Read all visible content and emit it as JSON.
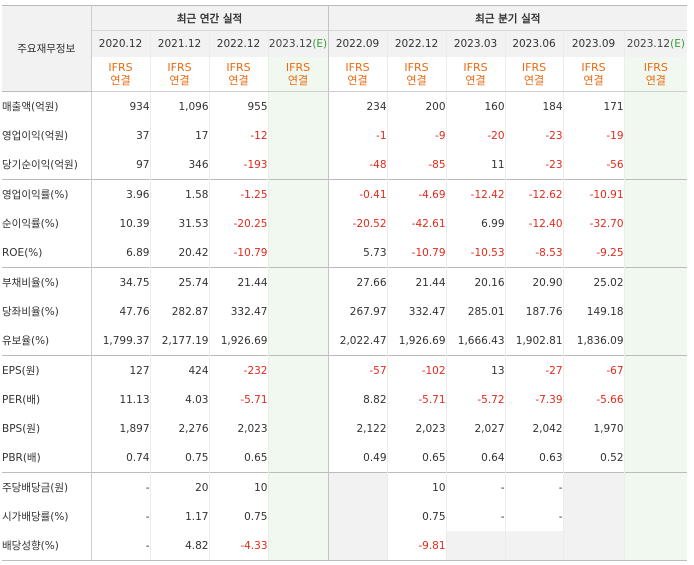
{
  "header": {
    "row_header": "주요재무정보",
    "annual_group": "최근 연간 실적",
    "quarter_group": "최근 분기 실적"
  },
  "periods": [
    {
      "label": "2020.12",
      "estimate": false,
      "basis": "IFRS",
      "scope": "연결"
    },
    {
      "label": "2021.12",
      "estimate": false,
      "basis": "IFRS",
      "scope": "연결"
    },
    {
      "label": "2022.12",
      "estimate": false,
      "basis": "IFRS",
      "scope": "연결"
    },
    {
      "label": "2023.12",
      "estimate": true,
      "estimate_mark": "(E)",
      "basis": "IFRS",
      "scope": "연결"
    },
    {
      "label": "2022.09",
      "estimate": false,
      "basis": "IFRS",
      "scope": "연결"
    },
    {
      "label": "2022.12",
      "estimate": false,
      "basis": "IFRS",
      "scope": "연결"
    },
    {
      "label": "2023.03",
      "estimate": false,
      "basis": "IFRS",
      "scope": "연결"
    },
    {
      "label": "2023.06",
      "estimate": false,
      "basis": "IFRS",
      "scope": "연결"
    },
    {
      "label": "2023.09",
      "estimate": false,
      "basis": "IFRS",
      "scope": "연결"
    },
    {
      "label": "2023.12",
      "estimate": true,
      "estimate_mark": "(E)",
      "basis": "IFRS",
      "scope": "연결"
    }
  ],
  "rows": [
    {
      "label": "매출액(억원)",
      "values": [
        "934",
        "1,096",
        "955",
        "",
        "234",
        "200",
        "160",
        "184",
        "171",
        ""
      ]
    },
    {
      "label": "영업이익(억원)",
      "values": [
        "37",
        "17",
        "-12",
        "",
        "-1",
        "-9",
        "-20",
        "-23",
        "-19",
        ""
      ]
    },
    {
      "label": "당기순이익(억원)",
      "values": [
        "97",
        "346",
        "-193",
        "",
        "-48",
        "-85",
        "11",
        "-23",
        "-56",
        ""
      ]
    },
    {
      "label": "영업이익률(%)",
      "values": [
        "3.96",
        "1.58",
        "-1.25",
        "",
        "-0.41",
        "-4.69",
        "-12.42",
        "-12.62",
        "-10.91",
        ""
      ]
    },
    {
      "label": "순이익률(%)",
      "values": [
        "10.39",
        "31.53",
        "-20.25",
        "",
        "-20.52",
        "-42.61",
        "6.99",
        "-12.40",
        "-32.70",
        ""
      ]
    },
    {
      "label": "ROE(%)",
      "values": [
        "6.89",
        "20.42",
        "-10.79",
        "",
        "5.73",
        "-10.79",
        "-10.53",
        "-8.53",
        "-9.25",
        ""
      ]
    },
    {
      "label": "부채비율(%)",
      "values": [
        "34.75",
        "25.74",
        "21.44",
        "",
        "27.66",
        "21.44",
        "20.16",
        "20.90",
        "25.02",
        ""
      ]
    },
    {
      "label": "당좌비율(%)",
      "values": [
        "47.76",
        "282.87",
        "332.47",
        "",
        "267.97",
        "332.47",
        "285.01",
        "187.76",
        "149.18",
        ""
      ]
    },
    {
      "label": "유보율(%)",
      "values": [
        "1,799.37",
        "2,177.19",
        "1,926.69",
        "",
        "2,022.47",
        "1,926.69",
        "1,666.43",
        "1,902.81",
        "1,836.09",
        ""
      ]
    },
    {
      "label": "EPS(원)",
      "values": [
        "127",
        "424",
        "-232",
        "",
        "-57",
        "-102",
        "13",
        "-27",
        "-67",
        ""
      ]
    },
    {
      "label": "PER(배)",
      "values": [
        "11.13",
        "4.03",
        "-5.71",
        "",
        "8.82",
        "-5.71",
        "-5.72",
        "-7.39",
        "-5.66",
        ""
      ]
    },
    {
      "label": "BPS(원)",
      "values": [
        "1,897",
        "2,276",
        "2,023",
        "",
        "2,122",
        "2,023",
        "2,027",
        "2,042",
        "1,970",
        ""
      ]
    },
    {
      "label": "PBR(배)",
      "values": [
        "0.74",
        "0.75",
        "0.65",
        "",
        "0.49",
        "0.65",
        "0.64",
        "0.63",
        "0.52",
        ""
      ]
    },
    {
      "label": "주당배당금(원)",
      "values": [
        "-",
        "20",
        "10",
        "",
        null,
        "10",
        "-",
        "-",
        null,
        ""
      ]
    },
    {
      "label": "시가배당률(%)",
      "values": [
        "-",
        "1.17",
        "0.75",
        "",
        null,
        "0.75",
        "-",
        "-",
        null,
        ""
      ]
    },
    {
      "label": "배당성향(%)",
      "values": [
        "-",
        "4.82",
        "-4.33",
        "",
        null,
        "-9.81",
        null,
        null,
        null,
        ""
      ]
    }
  ],
  "colors": {
    "negative": "#e02b1e",
    "ifrs": "#ea6a12",
    "estimate_mark": "#3a9a3a",
    "estimate_bg": "#f1f8ef",
    "header_bg": "#f2f2f2"
  }
}
